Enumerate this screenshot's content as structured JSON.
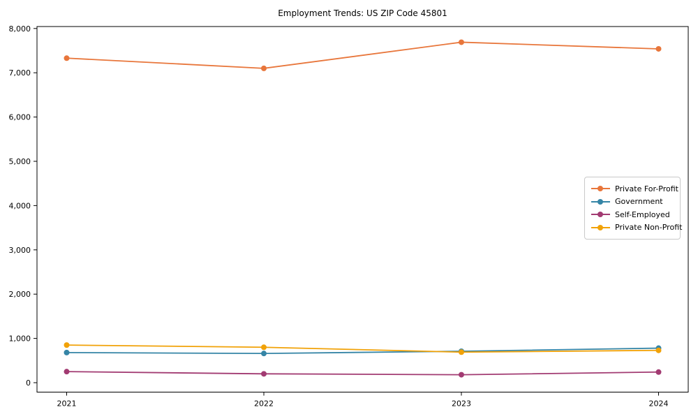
{
  "figure": {
    "title": "Employment Trends: US ZIP Code 45801"
  },
  "chart_data": {
    "type": "line",
    "title": "Employment Trends: US ZIP Code 45801",
    "xlabel": "",
    "ylabel": "",
    "x": [
      2021,
      2022,
      2023,
      2024
    ],
    "x_tick_labels": [
      "2021",
      "2022",
      "2023",
      "2024"
    ],
    "yticks": [
      0,
      1000,
      2000,
      3000,
      4000,
      5000,
      6000,
      7000,
      8000
    ],
    "ytick_labels": [
      "0",
      "1,000",
      "2,000",
      "3,000",
      "4,000",
      "5,000",
      "6,000",
      "7,000",
      "8,000"
    ],
    "ylim": [
      -213,
      8045
    ],
    "grid": false,
    "marker": "circle",
    "legend_position": "center-right",
    "series": [
      {
        "name": "Private For-Profit",
        "color": "#e8763b",
        "values": [
          7330,
          7100,
          7690,
          7540
        ]
      },
      {
        "name": "Government",
        "color": "#3585a6",
        "values": [
          680,
          660,
          710,
          780
        ]
      },
      {
        "name": "Self-Employed",
        "color": "#a23b72",
        "values": [
          250,
          200,
          180,
          240
        ]
      },
      {
        "name": "Private Non-Profit",
        "color": "#f1a208",
        "values": [
          850,
          800,
          690,
          730
        ]
      }
    ]
  }
}
